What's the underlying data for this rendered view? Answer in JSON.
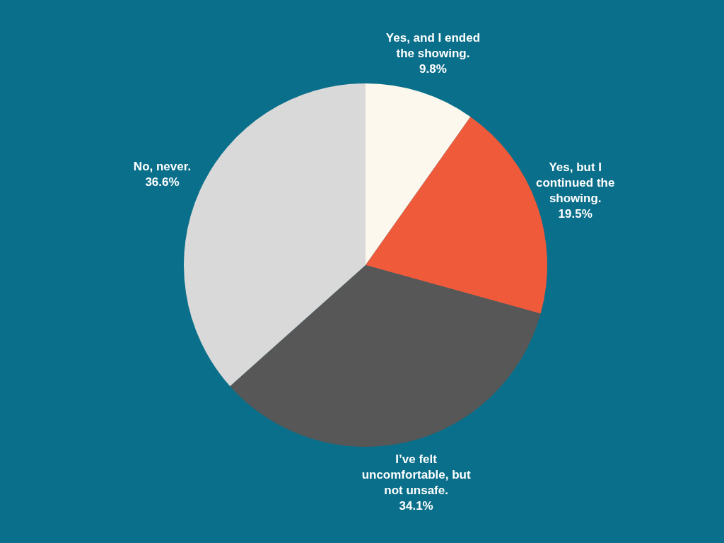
{
  "chart_data": {
    "type": "pie",
    "categories": [
      "Yes, and I ended the showing.",
      "Yes, but I continued the showing.",
      "I’ve felt uncomfortable, but not unsafe.",
      "No, never."
    ],
    "values": [
      9.8,
      19.5,
      34.1,
      36.6
    ],
    "value_labels": [
      "9.8%",
      "19.5%",
      "34.1%",
      "36.6%"
    ],
    "colors": [
      "#fdf8ee",
      "#ef5a3a",
      "#575757",
      "#d9d9d9"
    ],
    "legend": false
  }
}
